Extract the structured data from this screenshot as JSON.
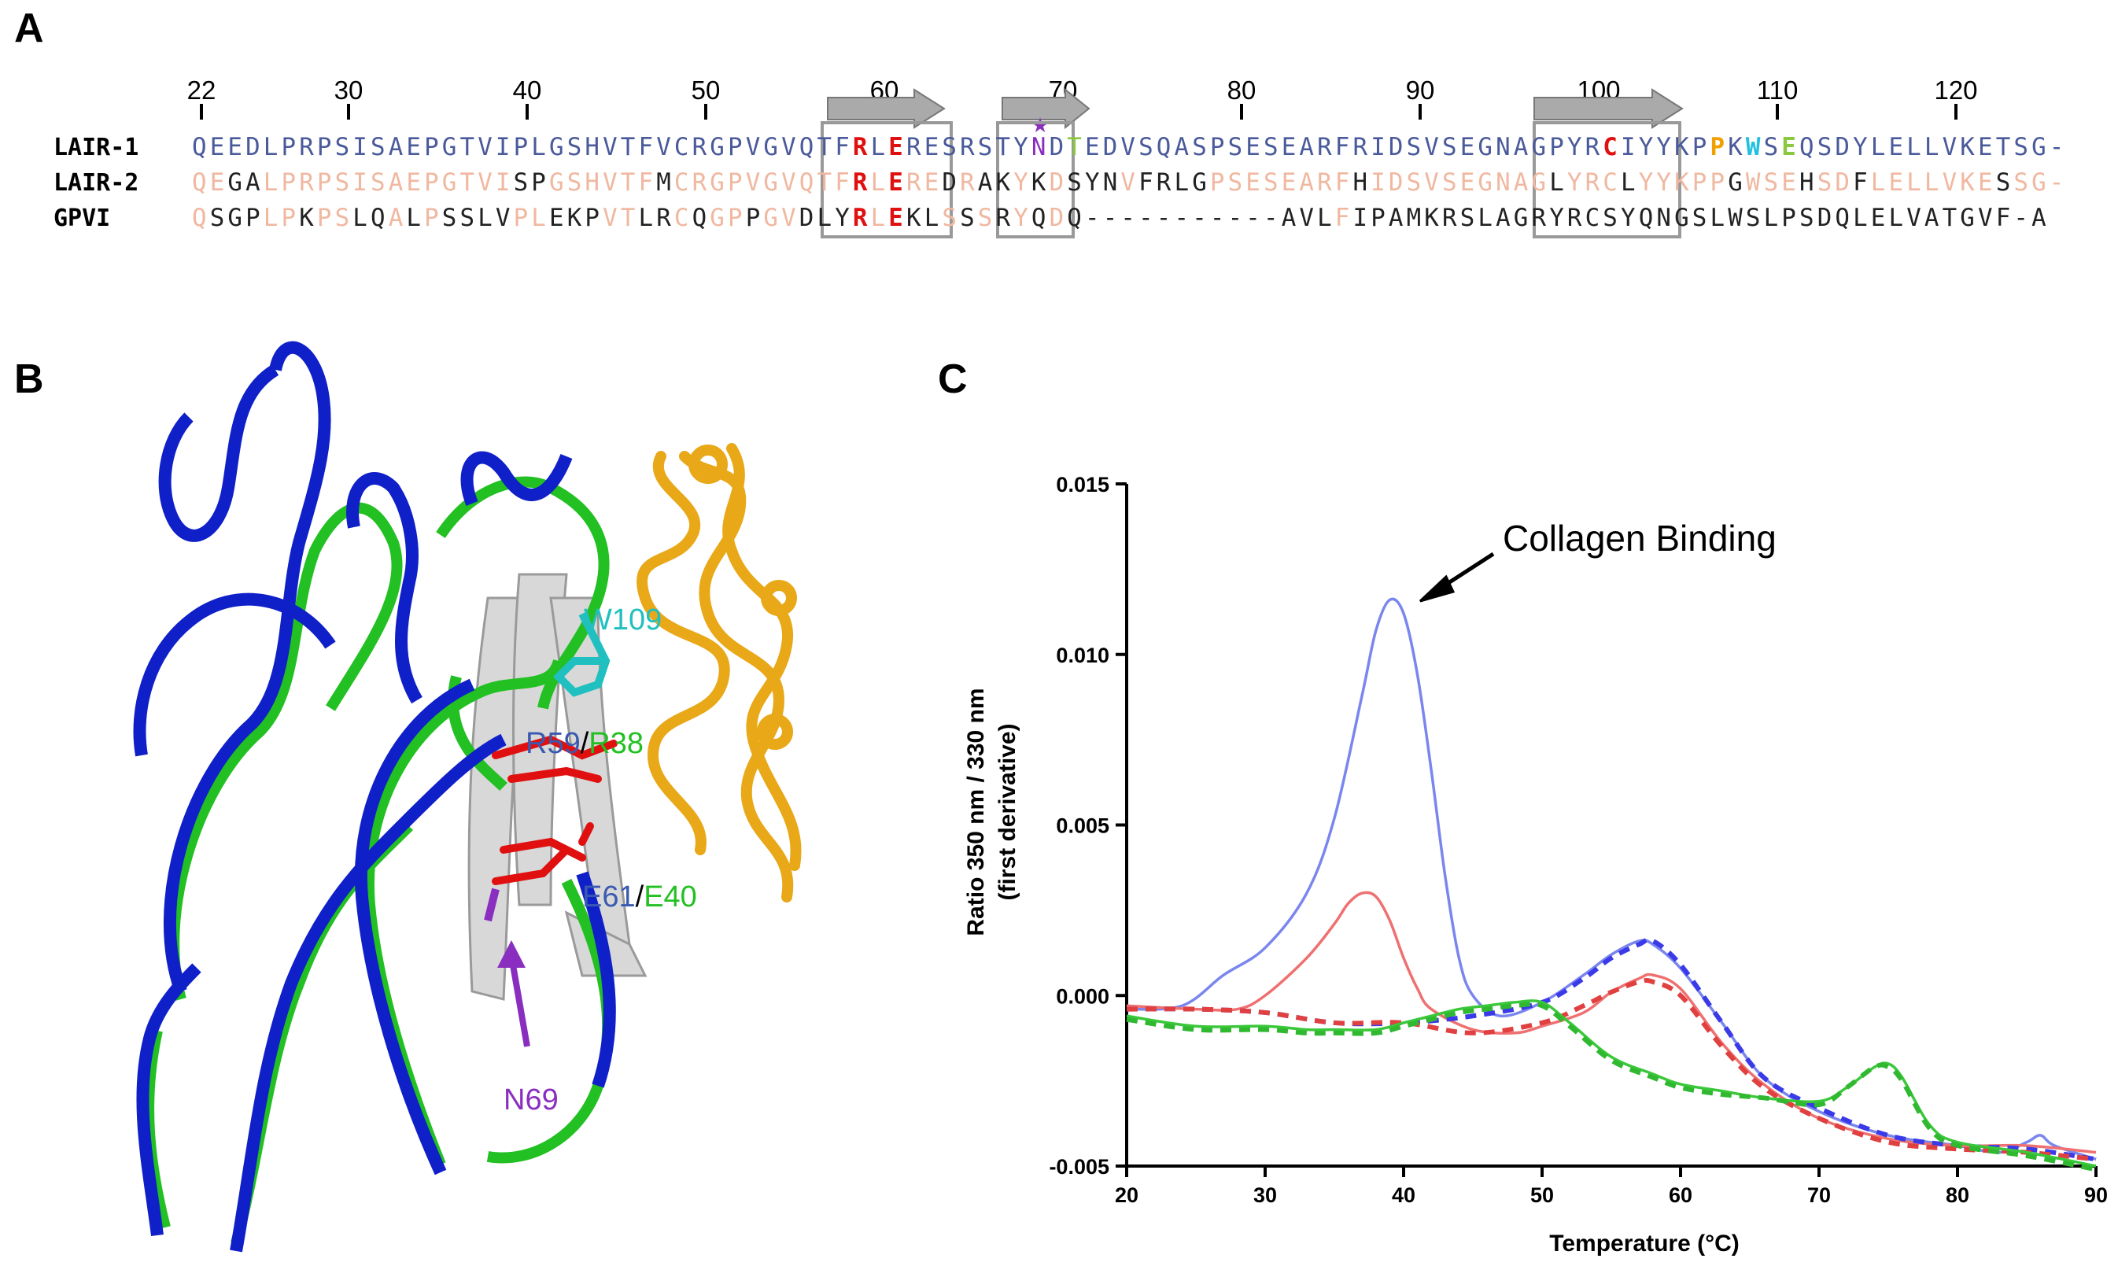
{
  "panels": {
    "a": "A",
    "b": "B",
    "c": "C"
  },
  "alignment": {
    "numbers": [
      "22",
      "30",
      "40",
      "50",
      "60",
      "70",
      "80",
      "90",
      "100",
      "110",
      "120"
    ],
    "rows": [
      {
        "name": "LAIR-1",
        "seq": "QEEDLPRPSISAEPGTVIPLGSHVTFVCRGPVGVQTFRLERESRSTYNDTEDVSQASPSESEARFRIDSVSEGNAGPYRCIYYKPPKWSEQSDYLELLVKETSG-"
      },
      {
        "name": "LAIR-2",
        "seq": "QEGALPRPSISAEPGTVISPGSHVTFMCRGPVGVQTFRLEREDRAKYKDSYNVFRLGPSESEARFHIDSVSEGNAGLYRCLYYKPPGWSEHSDFLELLVKESSG-"
      },
      {
        "name": "GPVI",
        "seq": "QSGPLPKPSLQALPSSLVPLEKPVTLRCQGPPGVDLYRLEKLSSSRYQDQ-----------AVLFIPAMKRSLAGRYRCSYQNGSLWSLPSDQLELVATGVF-A"
      }
    ],
    "star": "★"
  },
  "structure": {
    "labels": {
      "w109": "W109",
      "r59": "R59",
      "slash1": "/",
      "r38": "R38",
      "e61": "E61",
      "slash2": "/",
      "e40": "E40",
      "n69": "N69"
    },
    "colors": {
      "lair1": "#1428c8",
      "lair2": "#22c022",
      "gpvi": "#c8c8c8",
      "collagen": "#f0b020",
      "residue_rlE": "#e01010",
      "w109": "#20c0c0",
      "n69": "#8a2ec0"
    }
  },
  "chart_data": {
    "type": "line",
    "title": "",
    "annotation": "Collagen Binding",
    "xlabel": "Temperature (°C)",
    "ylabel": "Ratio 350 nm / 330 nm",
    "ylabel2": "(first derivative)",
    "xlim": [
      20,
      90
    ],
    "ylim": [
      -0.005,
      0.015
    ],
    "xticks": [
      "20",
      "30",
      "40",
      "50",
      "60",
      "70",
      "80",
      "90"
    ],
    "yticks": [
      "-0.005",
      "0.000",
      "0.005",
      "0.010",
      "0.015"
    ],
    "ytick_values": [
      -0.005,
      0.0,
      0.005,
      0.01,
      0.015
    ],
    "xtick_values": [
      20,
      30,
      40,
      50,
      60,
      70,
      80,
      90
    ],
    "series": [
      {
        "color": "#7a86ee",
        "style": "solid",
        "x": [
          20,
          24,
          27,
          30,
          33,
          35,
          37,
          38,
          39,
          40,
          41,
          42,
          43,
          44,
          45,
          47,
          50,
          53,
          55,
          57,
          58,
          60,
          63,
          66,
          70,
          75,
          80,
          83,
          85,
          86,
          87,
          90
        ],
        "y": [
          -0.0004,
          -0.0003,
          0.0006,
          0.0014,
          0.003,
          0.0052,
          0.0088,
          0.0107,
          0.0116,
          0.0112,
          0.0094,
          0.0066,
          0.0035,
          0.0011,
          0.0,
          -0.0006,
          -0.0002,
          0.0006,
          0.0012,
          0.0016,
          0.0015,
          0.0008,
          -0.0008,
          -0.0024,
          -0.0034,
          -0.0041,
          -0.0044,
          -0.0046,
          -0.0043,
          -0.0041,
          -0.0044,
          -0.0048
        ]
      },
      {
        "color": "#ef7070",
        "style": "solid",
        "x": [
          20,
          25,
          28,
          30,
          33,
          35,
          36,
          37,
          38,
          39,
          40,
          41,
          42,
          45,
          48,
          50,
          53,
          55,
          57,
          58,
          60,
          63,
          66,
          70,
          75,
          80,
          85,
          90
        ],
        "y": [
          -0.0003,
          -0.0004,
          -0.0004,
          0.0,
          0.0011,
          0.0021,
          0.0027,
          0.003,
          0.0029,
          0.0022,
          0.0011,
          0.0002,
          -0.0004,
          -0.001,
          -0.0011,
          -0.0009,
          -0.0005,
          0.0001,
          0.0005,
          0.0006,
          0.0002,
          -0.0014,
          -0.0026,
          -0.0036,
          -0.0042,
          -0.0044,
          -0.0044,
          -0.0046
        ]
      },
      {
        "color": "#3a3ae8",
        "style": "dashed",
        "x": [
          20,
          25,
          30,
          35,
          40,
          45,
          50,
          53,
          55,
          57,
          58,
          60,
          63,
          66,
          70,
          75,
          80,
          85,
          90
        ],
        "y": [
          -0.0004,
          -0.0004,
          -0.0005,
          -0.0008,
          -0.0008,
          -0.0006,
          -0.0002,
          0.0005,
          0.0011,
          0.0015,
          0.0016,
          0.0009,
          -0.0008,
          -0.0024,
          -0.0033,
          -0.0041,
          -0.0044,
          -0.0045,
          -0.0048
        ]
      },
      {
        "color": "#e04040",
        "style": "dashed",
        "x": [
          20,
          25,
          30,
          35,
          40,
          45,
          50,
          53,
          55,
          57,
          58,
          60,
          63,
          66,
          70,
          75,
          80,
          85,
          90
        ],
        "y": [
          -0.0004,
          -0.0004,
          -0.0005,
          -0.0008,
          -0.0008,
          -0.0011,
          -0.0008,
          -0.0003,
          0.0001,
          0.0004,
          0.0004,
          0.0,
          -0.0015,
          -0.0027,
          -0.0036,
          -0.0043,
          -0.0045,
          -0.0046,
          -0.0048
        ]
      },
      {
        "color": "#3ac83a",
        "style": "solid",
        "x": [
          20,
          25,
          30,
          33,
          35,
          38,
          40,
          42,
          44,
          46,
          48,
          50,
          52,
          55,
          58,
          60,
          63,
          66,
          70,
          72,
          74,
          75,
          76,
          78,
          80,
          85,
          90
        ],
        "y": [
          -0.0006,
          -0.0009,
          -0.0009,
          -0.001,
          -0.001,
          -0.001,
          -0.0008,
          -0.0006,
          -0.0004,
          -0.0003,
          -0.0002,
          -0.0002,
          -0.0008,
          -0.0018,
          -0.0023,
          -0.0026,
          -0.0028,
          -0.003,
          -0.0031,
          -0.0027,
          -0.0021,
          -0.002,
          -0.0024,
          -0.0038,
          -0.0043,
          -0.0046,
          -0.005
        ]
      },
      {
        "color": "#30b830",
        "style": "dashed",
        "x": [
          20,
          25,
          30,
          33,
          35,
          38,
          40,
          42,
          44,
          46,
          48,
          50,
          52,
          55,
          58,
          60,
          63,
          66,
          70,
          72,
          74,
          75,
          76,
          78,
          80,
          85,
          90
        ],
        "y": [
          -0.0007,
          -0.001,
          -0.001,
          -0.0011,
          -0.0011,
          -0.0011,
          -0.0009,
          -0.0007,
          -0.0005,
          -0.0004,
          -0.0003,
          -0.0003,
          -0.0009,
          -0.0019,
          -0.0024,
          -0.0027,
          -0.0029,
          -0.003,
          -0.0032,
          -0.0027,
          -0.0021,
          -0.0021,
          -0.0025,
          -0.0039,
          -0.0044,
          -0.0047,
          -0.0051
        ]
      }
    ]
  }
}
